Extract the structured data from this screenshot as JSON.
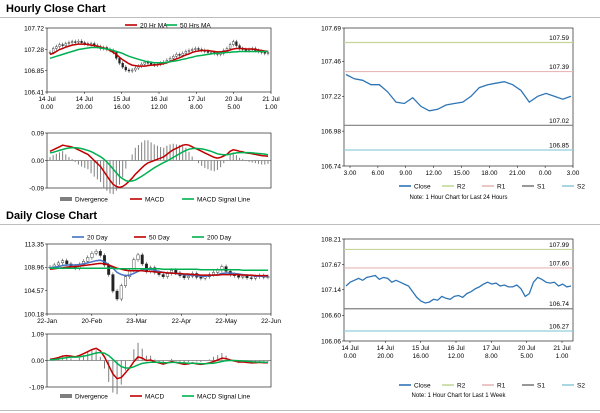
{
  "sections": {
    "hourly_title": "Hourly Close Chart",
    "daily_title": "Daily Close Chart"
  },
  "colors": {
    "close": "#2e75b6",
    "ma_short": "#c00000",
    "ma_long": "#00b050",
    "ma_200": "#00b050",
    "ma_20day": "#4472c4",
    "r2": "#c4d79b",
    "r1": "#e6b8b7",
    "s1": "#7f7f7f",
    "s2": "#92cddc",
    "divergence": "#7f7f7f",
    "macd": "#c00000",
    "signal": "#00b050",
    "candle": "#222222",
    "grid": "#d9d9d9"
  },
  "chart_data": [
    {
      "id": "hourly_price",
      "type": "candlestick",
      "title": "",
      "y_ticks": [
        "107.72",
        "107.28",
        "106.85",
        "106.41"
      ],
      "ylim": [
        106.41,
        107.72
      ],
      "x_ticks": [
        "14 Jul\n0.00",
        "14 Jul\n20.00",
        "15 Jul\n16.00",
        "16 Jul\n12.00",
        "17 Jul\n8.00",
        "20 Jul\n5.00",
        "21 Jul\n1.00"
      ],
      "legend": [
        "20 Hr MA",
        "50 Hrs MA"
      ],
      "close": [
        107.22,
        107.3,
        107.34,
        107.38,
        107.36,
        107.4,
        107.42,
        107.44,
        107.43,
        107.45,
        107.42,
        107.4,
        107.38,
        107.4,
        107.36,
        107.34,
        107.3,
        107.32,
        107.28,
        107.26,
        107.22,
        107.1,
        107.0,
        106.92,
        106.86,
        106.84,
        106.86,
        106.9,
        106.94,
        106.98,
        107.02,
        107.0,
        106.98,
        106.96,
        106.98,
        107.0,
        107.02,
        107.06,
        107.1,
        107.14,
        107.18,
        107.16,
        107.2,
        107.24,
        107.26,
        107.28,
        107.3,
        107.28,
        107.26,
        107.24,
        107.22,
        107.22,
        107.2,
        107.18,
        107.2,
        107.26,
        107.3,
        107.38,
        107.44,
        107.36,
        107.3,
        107.28,
        107.26,
        107.28,
        107.3,
        107.26,
        107.24,
        107.22,
        107.2,
        107.22
      ],
      "ma20": [
        107.18,
        107.2,
        107.24,
        107.28,
        107.3,
        107.33,
        107.35,
        107.37,
        107.38,
        107.39,
        107.39,
        107.39,
        107.38,
        107.37,
        107.36,
        107.35,
        107.33,
        107.31,
        107.29,
        107.26,
        107.22,
        107.18,
        107.12,
        107.07,
        107.03,
        106.99,
        106.96,
        106.95,
        106.94,
        106.94,
        106.94,
        106.95,
        106.96,
        106.96,
        106.97,
        106.98,
        106.99,
        107.01,
        107.03,
        107.06,
        107.09,
        107.11,
        107.14,
        107.17,
        107.19,
        107.22,
        107.24,
        107.25,
        107.26,
        107.26,
        107.26,
        107.25,
        107.24,
        107.23,
        107.23,
        107.24,
        107.25,
        107.27,
        107.29,
        107.3,
        107.3,
        107.3,
        107.29,
        107.29,
        107.29,
        107.28,
        107.27,
        107.26,
        107.25,
        107.24
      ],
      "ma50": [
        107.1,
        107.12,
        107.14,
        107.16,
        107.18,
        107.2,
        107.22,
        107.24,
        107.26,
        107.28,
        107.29,
        107.3,
        107.31,
        107.32,
        107.32,
        107.32,
        107.31,
        107.3,
        107.29,
        107.28,
        107.26,
        107.24,
        107.22,
        107.2,
        107.17,
        107.14,
        107.12,
        107.1,
        107.08,
        107.06,
        107.04,
        107.03,
        107.02,
        107.01,
        107.01,
        107.01,
        107.01,
        107.02,
        107.03,
        107.04,
        107.05,
        107.06,
        107.08,
        107.09,
        107.11,
        107.12,
        107.14,
        107.15,
        107.16,
        107.17,
        107.18,
        107.19,
        107.2,
        107.2,
        107.21,
        107.21,
        107.22,
        107.22,
        107.23,
        107.23,
        107.24,
        107.24,
        107.24,
        107.24,
        107.24,
        107.24,
        107.24,
        107.24,
        107.24,
        107.24
      ]
    },
    {
      "id": "hourly_macd",
      "type": "macd",
      "y_ticks": [
        "0.09",
        "0.00",
        "-0.09"
      ],
      "ylim": [
        -0.09,
        0.09
      ],
      "legend": [
        "Divergence",
        "MACD",
        "MACD Signal Line"
      ],
      "macd": [
        0.03,
        0.035,
        0.04,
        0.045,
        0.05,
        0.048,
        0.046,
        0.044,
        0.04,
        0.035,
        0.03,
        0.025,
        0.02,
        0.01,
        0.0,
        -0.01,
        -0.02,
        -0.035,
        -0.05,
        -0.065,
        -0.078,
        -0.085,
        -0.088,
        -0.085,
        -0.078,
        -0.068,
        -0.058,
        -0.045,
        -0.035,
        -0.025,
        -0.015,
        -0.008,
        -0.004,
        0.0,
        0.004,
        0.008,
        0.012,
        0.02,
        0.028,
        0.035,
        0.04,
        0.045,
        0.05,
        0.052,
        0.05,
        0.045,
        0.04,
        0.035,
        0.03,
        0.025,
        0.02,
        0.015,
        0.01,
        0.008,
        0.01,
        0.015,
        0.02,
        0.03,
        0.035,
        0.033,
        0.03,
        0.028,
        0.025,
        0.024,
        0.022,
        0.02,
        0.018,
        0.016,
        0.015,
        0.014
      ],
      "signal": [
        0.025,
        0.027,
        0.03,
        0.033,
        0.036,
        0.039,
        0.041,
        0.042,
        0.042,
        0.041,
        0.039,
        0.036,
        0.033,
        0.029,
        0.024,
        0.018,
        0.012,
        0.005,
        -0.005,
        -0.016,
        -0.028,
        -0.04,
        -0.052,
        -0.06,
        -0.066,
        -0.068,
        -0.067,
        -0.064,
        -0.058,
        -0.052,
        -0.045,
        -0.038,
        -0.031,
        -0.024,
        -0.018,
        -0.012,
        -0.007,
        -0.002,
        0.004,
        0.01,
        0.016,
        0.022,
        0.028,
        0.033,
        0.037,
        0.039,
        0.04,
        0.039,
        0.038,
        0.036,
        0.033,
        0.03,
        0.026,
        0.022,
        0.02,
        0.019,
        0.019,
        0.021,
        0.023,
        0.025,
        0.026,
        0.026,
        0.026,
        0.026,
        0.025,
        0.024,
        0.023,
        0.022,
        0.021,
        0.019
      ]
    },
    {
      "id": "hourly_levels",
      "type": "line",
      "y_ticks": [
        "107.69",
        "107.46",
        "107.22",
        "106.98",
        "106.74"
      ],
      "ylim": [
        106.74,
        107.69
      ],
      "x_ticks": [
        "3.00",
        "6.00",
        "9.00",
        "12.00",
        "15.00",
        "18.00",
        "21.00",
        "0.00",
        "3.00"
      ],
      "levels": [
        {
          "name": "R2",
          "value": 107.59
        },
        {
          "name": "R1",
          "value": 107.39
        },
        {
          "name": "S1",
          "value": 107.02
        },
        {
          "name": "S2",
          "value": 106.85
        }
      ],
      "level_labels": [
        "107.59",
        "107.39",
        "107.02",
        "106.85"
      ],
      "legend": [
        "Close",
        "R2",
        "R1",
        "S1",
        "S2"
      ],
      "close": [
        107.37,
        107.34,
        107.33,
        107.3,
        107.3,
        107.25,
        107.18,
        107.17,
        107.21,
        107.15,
        107.12,
        107.13,
        107.16,
        107.17,
        107.18,
        107.22,
        107.28,
        107.3,
        107.31,
        107.32,
        107.3,
        107.26,
        107.18,
        107.22,
        107.24,
        107.22,
        107.2,
        107.22
      ],
      "note": "Note: 1 Hour Chart for Last 24 Hours"
    },
    {
      "id": "daily_price",
      "type": "candlestick",
      "y_ticks": [
        "113.35",
        "108.96",
        "104.57",
        "100.18"
      ],
      "ylim": [
        100.18,
        113.35
      ],
      "x_ticks": [
        "22-Jan",
        "20-Feb",
        "23-Mar",
        "22-Apr",
        "22-May",
        "22-Jun"
      ],
      "legend": [
        "20 Day",
        "50 Day",
        "200 Day"
      ],
      "close": [
        109.0,
        109.4,
        109.8,
        110.2,
        109.6,
        109.2,
        108.8,
        109.5,
        110.1,
        110.8,
        111.6,
        112.0,
        111.2,
        109.4,
        107.6,
        104.5,
        103.0,
        105.5,
        107.2,
        108.4,
        110.4,
        111.3,
        109.6,
        108.2,
        108.9,
        108.0,
        107.6,
        107.2,
        107.8,
        108.4,
        107.9,
        107.4,
        107.0,
        107.3,
        107.8,
        107.1,
        106.9,
        107.2,
        107.6,
        108.0,
        108.4,
        109.1,
        108.2,
        107.6,
        107.4,
        107.1,
        107.3,
        107.0,
        106.9,
        107.2,
        107.4,
        107.1,
        107.2
      ],
      "ma20": [
        108.9,
        109.0,
        109.1,
        109.3,
        109.4,
        109.4,
        109.4,
        109.5,
        109.6,
        109.8,
        110.0,
        110.2,
        110.3,
        110.0,
        109.5,
        108.8,
        108.0,
        107.6,
        107.4,
        107.5,
        107.8,
        108.2,
        108.5,
        108.6,
        108.6,
        108.4,
        108.2,
        108.0,
        107.9,
        107.9,
        107.8,
        107.7,
        107.6,
        107.5,
        107.5,
        107.4,
        107.3,
        107.3,
        107.4,
        107.5,
        107.6,
        107.8,
        107.9,
        107.9,
        107.8,
        107.7,
        107.6,
        107.5,
        107.4,
        107.3,
        107.3,
        107.3,
        107.2
      ],
      "ma50": [
        108.6,
        108.7,
        108.8,
        108.9,
        109.0,
        109.1,
        109.1,
        109.2,
        109.3,
        109.4,
        109.5,
        109.6,
        109.7,
        109.6,
        109.4,
        109.1,
        108.8,
        108.6,
        108.4,
        108.3,
        108.3,
        108.3,
        108.3,
        108.2,
        108.2,
        108.1,
        108.0,
        108.0,
        107.9,
        107.9,
        107.8,
        107.8,
        107.7,
        107.7,
        107.6,
        107.6,
        107.5,
        107.5,
        107.5,
        107.5,
        107.5,
        107.6,
        107.6,
        107.6,
        107.6,
        107.6,
        107.5,
        107.5,
        107.5,
        107.4,
        107.4,
        107.4,
        107.4
      ],
      "ma200": [
        108.8,
        108.8,
        108.8,
        108.8,
        108.8,
        108.8,
        108.8,
        108.8,
        108.8,
        108.8,
        108.8,
        108.8,
        108.8,
        108.8,
        108.8,
        108.8,
        108.7,
        108.7,
        108.7,
        108.7,
        108.7,
        108.7,
        108.7,
        108.7,
        108.7,
        108.7,
        108.7,
        108.6,
        108.6,
        108.6,
        108.6,
        108.6,
        108.6,
        108.6,
        108.6,
        108.6,
        108.5,
        108.5,
        108.5,
        108.5,
        108.5,
        108.5,
        108.5,
        108.5,
        108.5,
        108.5,
        108.4,
        108.4,
        108.4,
        108.4,
        108.4,
        108.4,
        108.4
      ]
    },
    {
      "id": "daily_macd",
      "type": "macd",
      "y_ticks": [
        "1.09",
        "0.00",
        "-1.09"
      ],
      "ylim": [
        -1.09,
        1.09
      ],
      "legend": [
        "Divergence",
        "MACD",
        "MACD Signal Line"
      ],
      "macd": [
        0.05,
        0.08,
        0.12,
        0.18,
        0.2,
        0.18,
        0.15,
        0.2,
        0.28,
        0.36,
        0.45,
        0.5,
        0.4,
        0.15,
        -0.2,
        -0.55,
        -0.75,
        -0.7,
        -0.5,
        -0.3,
        -0.05,
        0.15,
        0.1,
        0.0,
        0.02,
        -0.05,
        -0.1,
        -0.15,
        -0.1,
        -0.05,
        -0.08,
        -0.12,
        -0.16,
        -0.14,
        -0.1,
        -0.14,
        -0.16,
        -0.14,
        -0.1,
        -0.04,
        0.02,
        0.1,
        0.08,
        0.02,
        -0.02,
        -0.06,
        -0.06,
        -0.08,
        -0.1,
        -0.09,
        -0.08,
        -0.09,
        -0.09
      ],
      "signal": [
        0.03,
        0.04,
        0.06,
        0.09,
        0.12,
        0.14,
        0.14,
        0.15,
        0.18,
        0.21,
        0.26,
        0.31,
        0.33,
        0.3,
        0.2,
        0.05,
        -0.12,
        -0.25,
        -0.31,
        -0.31,
        -0.26,
        -0.18,
        -0.12,
        -0.09,
        -0.07,
        -0.07,
        -0.07,
        -0.09,
        -0.09,
        -0.08,
        -0.08,
        -0.09,
        -0.1,
        -0.11,
        -0.11,
        -0.12,
        -0.13,
        -0.13,
        -0.12,
        -0.11,
        -0.08,
        -0.04,
        -0.01,
        0.0,
        0.0,
        -0.01,
        -0.02,
        -0.03,
        -0.05,
        -0.06,
        -0.06,
        -0.07,
        -0.07
      ]
    },
    {
      "id": "weekly_levels",
      "type": "line",
      "y_ticks": [
        "108.21",
        "107.67",
        "107.14",
        "106.60",
        "106.06"
      ],
      "ylim": [
        106.06,
        108.21
      ],
      "x_ticks": [
        "14 Jul\n0.00",
        "14 Jul\n20.00",
        "15 Jul\n16.00",
        "16 Jul\n12.00",
        "17 Jul\n8.00",
        "20 Jul\n5.00",
        "21 Jul\n1.00"
      ],
      "levels": [
        {
          "name": "R2",
          "value": 107.99
        },
        {
          "name": "R1",
          "value": 107.6
        },
        {
          "name": "S1",
          "value": 106.74
        },
        {
          "name": "S2",
          "value": 106.27
        }
      ],
      "level_labels": [
        "107.99",
        "107.60",
        "106.74",
        "106.27"
      ],
      "legend": [
        "Close",
        "R2",
        "R1",
        "S1",
        "S2"
      ],
      "close": [
        107.22,
        107.3,
        107.34,
        107.38,
        107.34,
        107.4,
        107.42,
        107.44,
        107.36,
        107.4,
        107.38,
        107.3,
        107.34,
        107.3,
        107.26,
        107.22,
        107.1,
        106.98,
        106.9,
        106.86,
        106.88,
        106.94,
        106.92,
        107.0,
        106.96,
        106.94,
        107.0,
        107.02,
        106.98,
        107.06,
        107.1,
        107.16,
        107.2,
        107.26,
        107.3,
        107.26,
        107.28,
        107.22,
        107.24,
        107.2,
        107.2,
        107.24,
        107.16,
        107.0,
        107.06,
        107.3,
        107.4,
        107.36,
        107.3,
        107.28,
        107.3,
        107.22,
        107.26,
        107.2,
        107.22
      ],
      "note": "Note: 1 Hour Chart for Last 1 Week"
    }
  ]
}
